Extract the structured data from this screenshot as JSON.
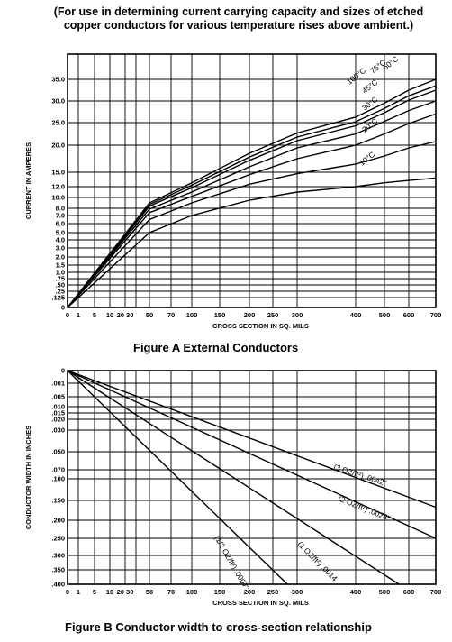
{
  "header": {
    "line1": "(For use in determining current carrying capacity and sizes of etched",
    "line2": "copper conductors for various temperature rises above ambient.)"
  },
  "chart_data": [
    {
      "type": "line",
      "title": "Figure A   External Conductors",
      "xlabel": "CROSS SECTION IN SQ. MILS",
      "ylabel": "CURRENT IN AMPERES",
      "x_ticks": [
        0,
        1,
        5,
        10,
        20,
        30,
        50,
        70,
        100,
        150,
        200,
        250,
        300,
        400,
        500,
        600,
        700
      ],
      "x_tick_labels": [
        "0",
        "1",
        "5",
        "10",
        "20 30",
        "",
        "50",
        "70",
        "100",
        "150",
        "200",
        "250",
        "300",
        "400",
        "500",
        "600",
        "700"
      ],
      "y_ticks": [
        0,
        0.125,
        0.25,
        0.5,
        0.75,
        1.0,
        1.5,
        2.0,
        3.0,
        4.0,
        5.0,
        6.0,
        7.0,
        8.0,
        10.0,
        12.0,
        15.0,
        20.0,
        25.0,
        30.0,
        35.0
      ],
      "y_tick_labels": [
        "0",
        ".125",
        ".25",
        ".50",
        ".75",
        "1.0",
        "1.5",
        "2.0",
        "3.0",
        "4.0",
        "5.0",
        "6.0",
        "7.0",
        "8.0",
        "10.0",
        "12.0",
        "15.0",
        "20.0",
        "25.0",
        "30.0",
        "35.0"
      ],
      "xlim": [
        0,
        700
      ],
      "ylim": [
        0,
        35
      ],
      "grid": true,
      "series": [
        {
          "name": "10°C",
          "x": [
            0,
            50,
            100,
            200,
            300,
            400,
            500,
            600,
            700
          ],
          "y": [
            0,
            5.0,
            7.0,
            9.5,
            11.0,
            12.0,
            12.8,
            13.3,
            13.8
          ]
        },
        {
          "name": "20°C",
          "x": [
            0,
            50,
            100,
            200,
            300,
            400,
            500,
            600,
            700
          ],
          "y": [
            0,
            6.5,
            9.0,
            12.5,
            14.7,
            16.5,
            18.0,
            19.5,
            20.8
          ]
        },
        {
          "name": "30°C",
          "x": [
            0,
            50,
            100,
            200,
            300,
            400,
            500,
            600,
            700
          ],
          "y": [
            0,
            7.4,
            10.2,
            14.5,
            17.5,
            20.0,
            22.5,
            24.8,
            27.0
          ]
        },
        {
          "name": "45°C",
          "x": [
            0,
            50,
            100,
            200,
            300,
            400,
            500,
            600,
            700
          ],
          "y": [
            0,
            7.9,
            11.0,
            16.0,
            19.5,
            22.5,
            25.3,
            27.8,
            30.0
          ]
        },
        {
          "name": "60°C",
          "x": [
            0,
            50,
            100,
            200,
            300,
            400,
            500,
            600,
            700
          ],
          "y": [
            0,
            8.4,
            11.8,
            17.2,
            21.0,
            24.3,
            27.3,
            30.2,
            32.5
          ]
        },
        {
          "name": "75°C",
          "x": [
            0,
            50,
            100,
            200,
            300,
            400,
            500,
            600,
            700
          ],
          "y": [
            0,
            8.7,
            12.3,
            17.8,
            21.8,
            25.2,
            28.3,
            31.2,
            33.5
          ]
        },
        {
          "name": "100°C",
          "x": [
            0,
            50,
            100,
            200,
            300,
            400,
            500,
            600,
            700
          ],
          "y": [
            0,
            9.0,
            12.8,
            18.5,
            22.7,
            26.3,
            29.5,
            32.5,
            35.0
          ]
        }
      ]
    },
    {
      "type": "line",
      "title": "Figure B   Conductor width to cross-section relationship",
      "xlabel": "CROSS SECTION IN SQ. MILS",
      "ylabel": "CONDUCTOR WIDTH IN INCHES",
      "x_ticks": [
        0,
        1,
        5,
        10,
        20,
        30,
        50,
        70,
        100,
        150,
        200,
        250,
        300,
        400,
        500,
        600,
        700
      ],
      "x_tick_labels": [
        "0",
        "1",
        "5",
        "10",
        "20 30",
        "",
        "50",
        "70",
        "100",
        "150",
        "200",
        "250",
        "300",
        "400",
        "500",
        "600",
        "700"
      ],
      "y_ticks": [
        0,
        0.001,
        0.005,
        0.01,
        0.015,
        0.02,
        0.03,
        0.05,
        0.07,
        0.1,
        0.15,
        0.2,
        0.25,
        0.3,
        0.35,
        0.4
      ],
      "y_tick_labels": [
        "0",
        ".001",
        ".005",
        ".010",
        ".015",
        ".020",
        ".030",
        ".050",
        ".070",
        ".100",
        ".150",
        ".200",
        ".250",
        ".300",
        ".350",
        ".400"
      ],
      "xlim": [
        0,
        700
      ],
      "ylim": [
        0,
        0.4
      ],
      "grid": true,
      "series": [
        {
          "name": "(3 OZ/ft²) .0042\"",
          "x": [
            0,
            700
          ],
          "y": [
            0,
            0.167
          ]
        },
        {
          "name": "(2 OZ/ft²) .0028\"",
          "x": [
            0,
            700
          ],
          "y": [
            0,
            0.25
          ]
        },
        {
          "name": "(1 OZ/ft²) .0014",
          "x": [
            0,
            560
          ],
          "y": [
            0,
            0.4
          ]
        },
        {
          "name": "(1/2 OZ/ft²) .0007\"",
          "x": [
            0,
            280
          ],
          "y": [
            0,
            0.4
          ]
        }
      ]
    }
  ]
}
